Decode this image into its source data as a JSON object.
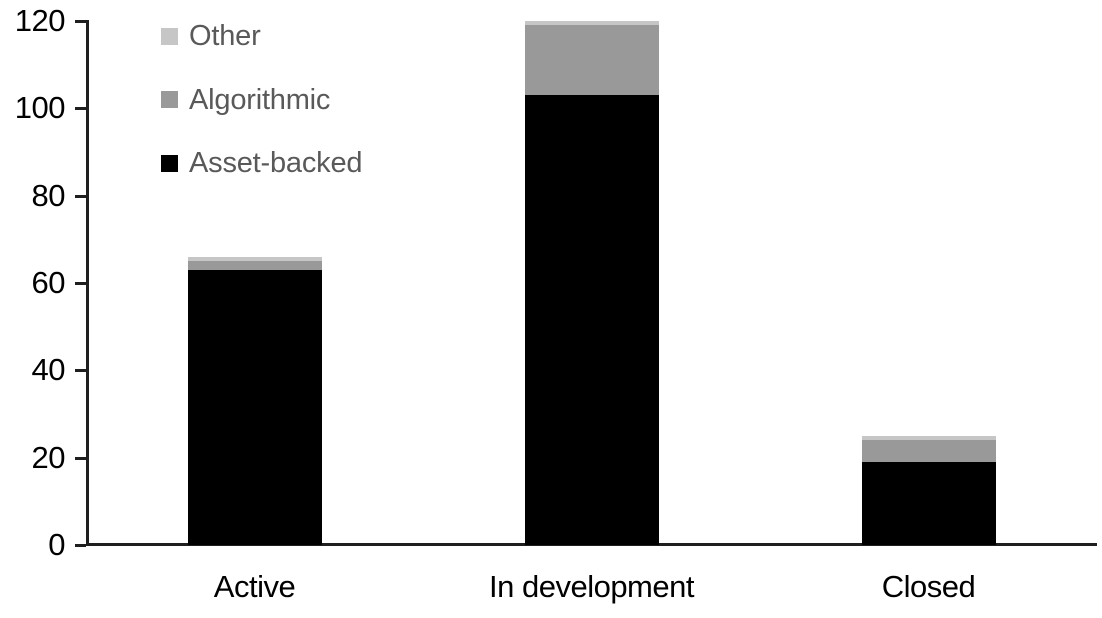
{
  "chart_data": {
    "type": "bar",
    "stacked": true,
    "title": "",
    "xlabel": "",
    "ylabel": "",
    "categories": [
      "Active",
      "In development",
      "Closed"
    ],
    "series": [
      {
        "name": "Asset-backed",
        "color": "#000000",
        "values": [
          63,
          103,
          19
        ]
      },
      {
        "name": "Algorithmic",
        "color": "#999999",
        "values": [
          2,
          16,
          5
        ]
      },
      {
        "name": "Other",
        "color": "#c6c6c6",
        "values": [
          1,
          1,
          1
        ]
      }
    ],
    "ylim": [
      0,
      120
    ],
    "yticks": [
      0,
      20,
      40,
      60,
      80,
      100,
      120
    ],
    "grid": false,
    "legend_position": "top-left",
    "legend_order": [
      "Other",
      "Algorithmic",
      "Asset-backed"
    ]
  },
  "colors": {
    "background": "#ffffff",
    "axis": "#1f1f1f",
    "tick_label": "#000000",
    "category_label": "#000000",
    "legend_text": "#595959"
  }
}
